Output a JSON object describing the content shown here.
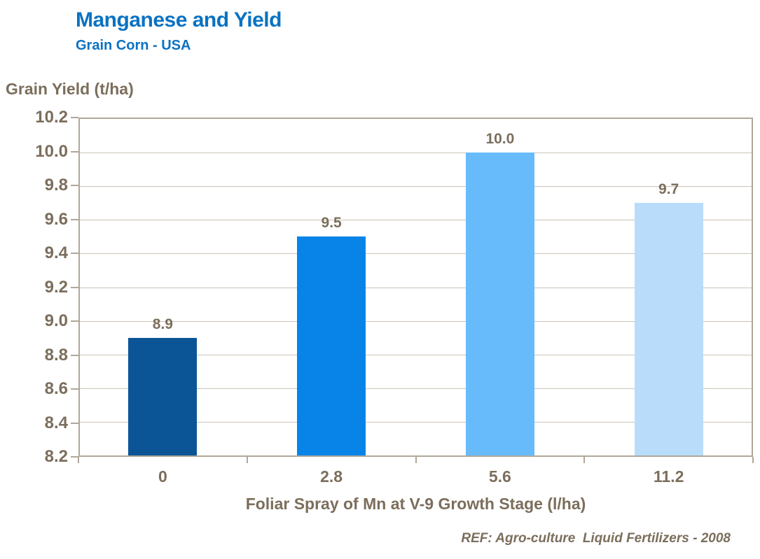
{
  "header": {
    "title": "Manganese and Yield",
    "subtitle": "Grain Corn - USA"
  },
  "footer": {
    "reference": "REF: Agro-culture  Liquid Fertilizers - 2008"
  },
  "colors": {
    "title_blue": "#0b72c2",
    "axis_text": "#7b6e5c",
    "gridline": "#cbc3b8",
    "axis_line": "#b1a79a",
    "background": "#ffffff"
  },
  "chart_data": {
    "type": "bar",
    "title": "Manganese and Yield",
    "subtitle": "Grain Corn - USA",
    "categories": [
      "0",
      "2.8",
      "5.6",
      "11.2"
    ],
    "values": [
      8.9,
      9.5,
      10.0,
      9.7
    ],
    "value_labels": [
      "8.9",
      "9.5",
      "10.0",
      "9.7"
    ],
    "xlabel": "Foliar Spray of Mn at V-9 Growth Stage (l/ha)",
    "ylabel": "Grain Yield (t/ha)",
    "ylim": [
      8.2,
      10.2
    ],
    "ytick_step": 0.2,
    "ytick_labels": [
      "10.2",
      "10.0",
      "9.8",
      "9.6",
      "9.4",
      "9.2",
      "9.0",
      "8.8",
      "8.6",
      "8.4",
      "8.2"
    ],
    "grid": true,
    "legend": false,
    "bar_colors": [
      "#0b5597",
      "#0884e8",
      "#68bbfb",
      "#b9dcfb"
    ]
  }
}
